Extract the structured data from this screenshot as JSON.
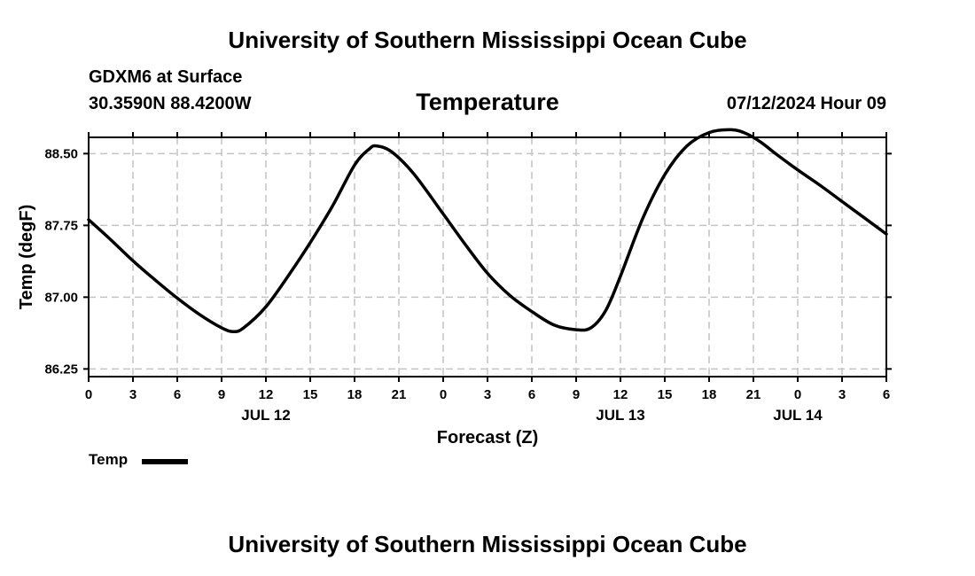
{
  "header": {
    "title": "University of Southern Mississippi Ocean Cube",
    "station": "GDXM6 at Surface",
    "coords": "30.3590N  88.4200W",
    "variable": "Temperature",
    "datetime": "07/12/2024 Hour 09"
  },
  "footer": {
    "title": "University of Southern Mississippi Ocean Cube"
  },
  "legend": {
    "label": "Temp"
  },
  "chart_data": {
    "type": "line",
    "title": "Temperature",
    "xlabel": "Forecast (Z)",
    "ylabel": "Temp (degF)",
    "x_unit": "hours since JUL 12 00Z",
    "xlim": [
      0,
      54
    ],
    "ylim": [
      86.17,
      88.67
    ],
    "grid": true,
    "legend_position": "bottom-left",
    "x_ticks": [
      {
        "value": 0,
        "label": "0"
      },
      {
        "value": 3,
        "label": "3"
      },
      {
        "value": 6,
        "label": "6"
      },
      {
        "value": 9,
        "label": "9"
      },
      {
        "value": 12,
        "label": "12"
      },
      {
        "value": 15,
        "label": "15"
      },
      {
        "value": 18,
        "label": "18"
      },
      {
        "value": 21,
        "label": "21"
      },
      {
        "value": 24,
        "label": "0"
      },
      {
        "value": 27,
        "label": "3"
      },
      {
        "value": 30,
        "label": "6"
      },
      {
        "value": 33,
        "label": "9"
      },
      {
        "value": 36,
        "label": "12"
      },
      {
        "value": 39,
        "label": "15"
      },
      {
        "value": 42,
        "label": "18"
      },
      {
        "value": 45,
        "label": "21"
      },
      {
        "value": 48,
        "label": "0"
      },
      {
        "value": 51,
        "label": "3"
      },
      {
        "value": 54,
        "label": "6"
      }
    ],
    "day_labels": [
      {
        "value": 12,
        "label": "JUL 12"
      },
      {
        "value": 36,
        "label": "JUL 13"
      },
      {
        "value": 48,
        "label": "JUL 14"
      }
    ],
    "y_ticks": [
      {
        "value": 86.25,
        "label": "86.25"
      },
      {
        "value": 87.0,
        "label": "87.00"
      },
      {
        "value": 87.75,
        "label": "87.75"
      },
      {
        "value": 88.5,
        "label": "88.50"
      }
    ],
    "series": [
      {
        "name": "Temp",
        "color": "#000000",
        "x": [
          0,
          1.5,
          3,
          4.5,
          6,
          7.5,
          9,
          9.8,
          10.5,
          12,
          13.5,
          15,
          16.5,
          18,
          19,
          19.5,
          20.5,
          22,
          24,
          25.5,
          27,
          28.5,
          30,
          31.5,
          33,
          34,
          35,
          36,
          37.5,
          39,
          40.5,
          42,
          43.5,
          44.5,
          45.5,
          46.5,
          48,
          49.5,
          51,
          52.5,
          54
        ],
        "values": [
          87.81,
          87.6,
          87.38,
          87.18,
          86.99,
          86.82,
          86.68,
          86.64,
          86.68,
          86.9,
          87.22,
          87.57,
          87.95,
          88.38,
          88.55,
          88.58,
          88.52,
          88.29,
          87.87,
          87.55,
          87.25,
          87.02,
          86.85,
          86.71,
          86.66,
          86.68,
          86.86,
          87.22,
          87.82,
          88.28,
          88.58,
          88.72,
          88.75,
          88.71,
          88.62,
          88.5,
          88.33,
          88.17,
          88.0,
          87.83,
          87.66
        ]
      }
    ]
  }
}
